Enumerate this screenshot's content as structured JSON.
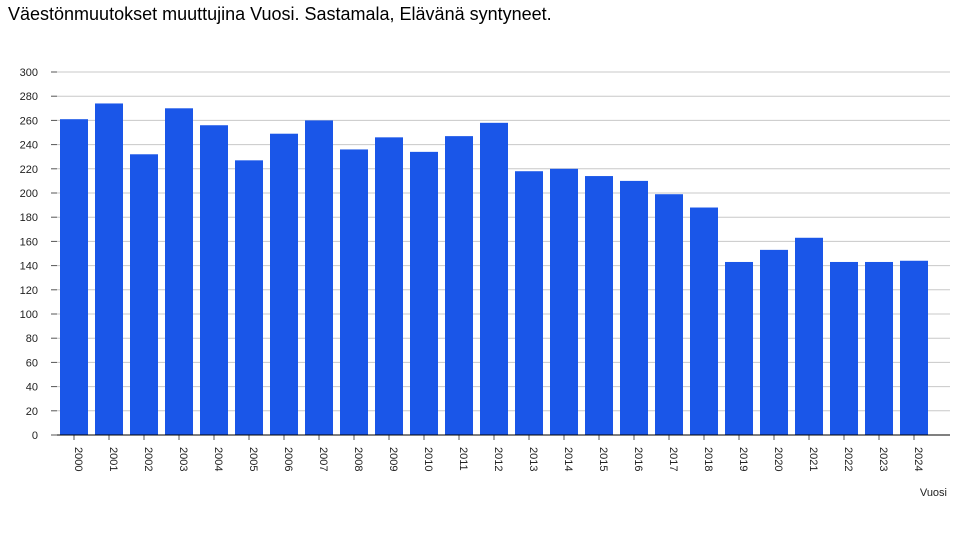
{
  "chart_data": {
    "type": "bar",
    "title": "Väestönmuutokset muuttujina Vuosi. Sastamala, Elävänä syntyneet.",
    "xlabel": "Vuosi",
    "ylabel": "",
    "ylim": [
      0,
      300
    ],
    "yticks": [
      0,
      20,
      40,
      60,
      80,
      100,
      120,
      140,
      160,
      180,
      200,
      220,
      240,
      260,
      280,
      300
    ],
    "grid": true,
    "bar_color": "#1a56e8",
    "categories": [
      "2000",
      "2001",
      "2002",
      "2003",
      "2004",
      "2005",
      "2006",
      "2007",
      "2008",
      "2009",
      "2010",
      "2011",
      "2012",
      "2013",
      "2014",
      "2015",
      "2016",
      "2017",
      "2018",
      "2019",
      "2020",
      "2021",
      "2022",
      "2023",
      "2024"
    ],
    "values": [
      261,
      274,
      232,
      270,
      256,
      227,
      249,
      260,
      236,
      246,
      234,
      247,
      258,
      218,
      220,
      214,
      210,
      199,
      188,
      143,
      153,
      163,
      143,
      143,
      144
    ]
  }
}
